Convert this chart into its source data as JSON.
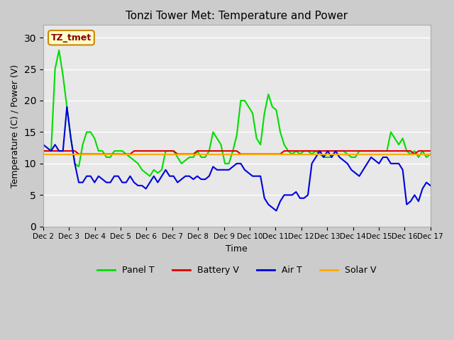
{
  "title": "Tonzi Tower Met: Temperature and Power",
  "xlabel": "Time",
  "ylabel": "Temperature (C) / Power (V)",
  "ylim": [
    0,
    32
  ],
  "yticks": [
    0,
    5,
    10,
    15,
    20,
    25,
    30
  ],
  "legend_label": "TZ_tmet",
  "series_colors": {
    "Panel T": "#00dd00",
    "Battery V": "#dd0000",
    "Air T": "#0000dd",
    "Solar V": "#ffaa00"
  },
  "series_lw": 1.5,
  "xtick_labels": [
    "Dec 2",
    "Dec 3",
    "Dec 4",
    "Dec 5",
    "Dec 6",
    "Dec 7",
    "Dec 8",
    "Dec 9",
    "Dec 10",
    "Dec 11",
    "Dec 12",
    "Dec 13",
    "Dec 14",
    "Dec 15",
    "Dec 16",
    "Dec 17"
  ],
  "panel_t": [
    12,
    12,
    12,
    25,
    28,
    24,
    19,
    14,
    10,
    9.5,
    13,
    15,
    15,
    14,
    12,
    12,
    11,
    11,
    12,
    12,
    12,
    11.5,
    11,
    10.5,
    10,
    9,
    8.5,
    8,
    9,
    8.5,
    9,
    12,
    12,
    12,
    11,
    10,
    10.5,
    11,
    11,
    12,
    11,
    11,
    12,
    15,
    14,
    13,
    10,
    10,
    12,
    14.5,
    20,
    20,
    19,
    18,
    14,
    13,
    18,
    21,
    19,
    18.5,
    15,
    13,
    12,
    11.5,
    12,
    11.5,
    12,
    12,
    11.5,
    12,
    11.5,
    11,
    11,
    11,
    12,
    12,
    12,
    11.5,
    11,
    11,
    12,
    12,
    12,
    12,
    12,
    12,
    12,
    12,
    15,
    14,
    13,
    14,
    12,
    11.5,
    12,
    11,
    12,
    11,
    11.5,
    12
  ],
  "battery_v": [
    12,
    12,
    12,
    12,
    12,
    12,
    12,
    12,
    12,
    11.5,
    11.5,
    11.5,
    11.5,
    11.5,
    11.5,
    11.5,
    11.5,
    11.5,
    11.5,
    11.5,
    11.5,
    11.5,
    11.5,
    12,
    12,
    12,
    12,
    12,
    12,
    12,
    12,
    12,
    12,
    12,
    11.5,
    11.5,
    11.5,
    11.5,
    11.5,
    12,
    12,
    12,
    12,
    12,
    12,
    12,
    12,
    12,
    12,
    12,
    11.5,
    11.5,
    11.5,
    11.5,
    11.5,
    11.5,
    11.5,
    11.5,
    11.5,
    11.5,
    11.5,
    12,
    12,
    12,
    12,
    12,
    12,
    12,
    12,
    12,
    12,
    12,
    12,
    12,
    12,
    12,
    12,
    12,
    12,
    12,
    12,
    12,
    12,
    12,
    12,
    12,
    12,
    12,
    12,
    12,
    12,
    12,
    12,
    12,
    11.5,
    12,
    12,
    12,
    12
  ],
  "air_t": [
    13,
    12.5,
    12,
    13,
    12,
    12,
    19,
    14,
    10,
    7,
    7,
    8,
    8,
    7,
    8,
    7.5,
    7,
    7,
    8,
    8,
    7,
    7,
    8,
    7,
    6.5,
    6.5,
    6,
    7,
    8,
    7,
    8,
    9,
    8,
    8,
    7,
    7.5,
    8,
    8,
    7.5,
    8,
    7.5,
    7.5,
    8,
    9.5,
    9,
    9,
    9,
    9,
    9.5,
    10,
    10,
    9,
    8.5,
    8,
    8,
    8,
    4.5,
    3.5,
    3,
    2.5,
    4,
    5,
    5,
    5,
    5.5,
    4.5,
    4.5,
    5,
    10,
    11,
    12,
    11,
    12,
    11,
    12,
    11,
    10.5,
    10,
    9,
    8.5,
    8,
    9,
    10,
    11,
    10.5,
    10,
    11,
    11,
    10,
    10,
    10,
    9,
    3.5,
    4,
    5,
    4,
    6,
    7,
    6.5,
    6.5
  ],
  "solar_v": [
    11.5,
    11.5,
    11.5,
    11.5,
    11.5,
    11.5,
    11.5,
    11.5,
    11.5,
    11.5,
    11.5,
    11.5,
    11.5,
    11.5,
    11.5,
    11.5,
    11.5,
    11.5,
    11.5,
    11.5,
    11.5,
    11.5,
    11.5,
    11.5,
    11.5,
    11.5,
    11.5,
    11.5,
    11.5,
    11.5,
    11.5,
    11.5,
    11.5,
    11.5,
    11.5,
    11.5,
    11.5,
    11.5,
    11.5,
    11.5,
    11.5,
    11.5,
    11.5,
    11.5,
    11.5,
    11.5,
    11.5,
    11.5,
    11.5,
    11.5,
    11.5,
    11.5,
    11.5,
    11.5,
    11.5,
    11.5,
    11.5,
    11.5,
    11.5,
    11.5,
    11.5,
    11.5,
    11.5,
    11.5,
    11.5,
    11.5,
    11.5,
    11.5,
    11.5,
    11.5,
    11.5,
    11.5,
    11.5,
    11.5,
    11.5,
    11.5,
    11.5,
    11.5,
    11.5,
    11.5,
    11.5,
    11.5,
    11.5,
    11.5,
    11.5,
    11.5,
    11.5,
    11.5,
    11.5,
    11.5,
    11.5,
    11.5,
    11.5,
    11.5,
    11.5,
    11.5,
    11.5,
    11.5,
    11.5,
    11.5
  ]
}
